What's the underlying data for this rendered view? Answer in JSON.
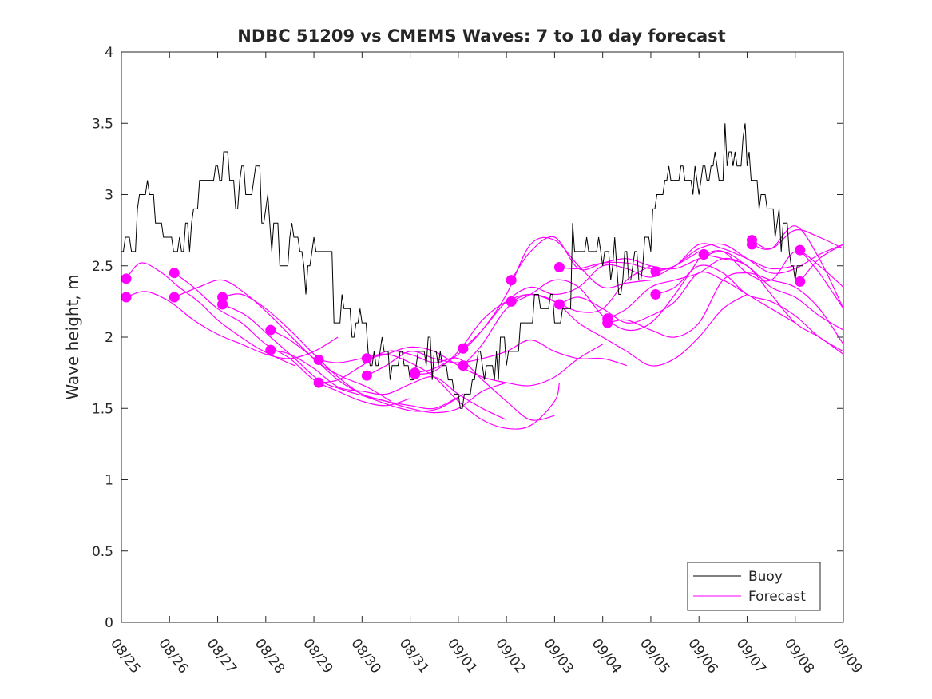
{
  "chart_data": {
    "type": "line",
    "title": "NDBC 51209 vs CMEMS Waves: 7 to 10 day forecast",
    "xlabel": "",
    "ylabel": "Wave height, m",
    "xlim": [
      0,
      15
    ],
    "ylim": [
      0,
      4
    ],
    "x_tick_labels": [
      "08/25",
      "08/26",
      "08/27",
      "08/28",
      "08/29",
      "08/30",
      "08/31",
      "09/01",
      "09/02",
      "09/03",
      "09/04",
      "09/05",
      "09/06",
      "09/07",
      "09/08",
      "09/09"
    ],
    "y_ticks": [
      0,
      0.5,
      1,
      1.5,
      2,
      2.5,
      3,
      3.5,
      4
    ],
    "y_tick_labels": [
      "0",
      "0.5",
      "1",
      "1.5",
      "2",
      "2.5",
      "3",
      "3.5",
      "4"
    ],
    "legend": {
      "position": "bottom-right",
      "entries": [
        {
          "label": "Buoy",
          "color": "#000000"
        },
        {
          "label": "Forecast",
          "color": "#ff00ff"
        }
      ]
    },
    "colors": {
      "buoy": "#000000",
      "forecast": "#ff00ff"
    },
    "buoy_series": {
      "name": "Buoy",
      "anchor_x": [
        0.0,
        0.15,
        0.3,
        0.45,
        0.6,
        0.8,
        1.0,
        1.2,
        1.4,
        1.6,
        1.8,
        2.0,
        2.2,
        2.4,
        2.5,
        2.7,
        2.9,
        3.0,
        3.2,
        3.4,
        3.6,
        3.8,
        4.0,
        4.2,
        4.4,
        4.6,
        4.8,
        5.0,
        5.2,
        5.4,
        5.6,
        5.8,
        6.0,
        6.2,
        6.4,
        6.6,
        6.8,
        7.0,
        7.2,
        7.4,
        7.6,
        7.8,
        8.0,
        8.2,
        8.4,
        8.6,
        8.8,
        9.0,
        9.2,
        9.4,
        9.6,
        9.8,
        10.0,
        10.2,
        10.4,
        10.6,
        10.8,
        11.0,
        11.2,
        11.4,
        11.6,
        11.8,
        12.0,
        12.2,
        12.4,
        12.6,
        12.8,
        13.0,
        13.2,
        13.4,
        13.6,
        13.8,
        14.0,
        14.2
      ],
      "anchor_y": [
        2.7,
        2.6,
        2.8,
        3.1,
        2.9,
        2.6,
        2.7,
        2.6,
        2.8,
        3.0,
        2.9,
        3.1,
        3.2,
        2.9,
        3.2,
        3.1,
        2.8,
        2.9,
        2.6,
        2.5,
        2.7,
        2.4,
        2.6,
        2.5,
        2.2,
        2.2,
        2.0,
        2.1,
        1.9,
        1.9,
        1.85,
        1.8,
        1.8,
        1.85,
        1.9,
        1.8,
        1.7,
        1.65,
        1.55,
        1.75,
        1.7,
        1.8,
        1.85,
        1.9,
        2.0,
        2.2,
        2.2,
        2.1,
        2.3,
        2.5,
        2.7,
        2.6,
        2.6,
        2.5,
        2.4,
        2.5,
        2.6,
        2.75,
        3.0,
        3.15,
        3.1,
        3.0,
        3.1,
        3.2,
        3.2,
        3.25,
        3.3,
        3.3,
        3.1,
        2.9,
        2.75,
        2.65,
        2.5,
        2.45
      ],
      "noise": 0.08
    },
    "forecast_series": [
      {
        "name": "Forecast",
        "x": [
          0.1,
          0.4,
          0.8,
          1.2,
          1.6,
          2.0,
          2.4,
          2.8,
          3.2,
          3.6
        ],
        "y": [
          2.41,
          2.52,
          2.46,
          2.35,
          2.25,
          2.12,
          2.02,
          1.93,
          1.86,
          1.8
        ]
      },
      {
        "name": "Forecast",
        "x": [
          0.1,
          0.5,
          1.0,
          1.5,
          2.0,
          2.5,
          3.0,
          3.5,
          4.0,
          4.5
        ],
        "y": [
          2.28,
          2.32,
          2.25,
          2.12,
          2.02,
          1.95,
          1.88,
          1.85,
          1.9,
          2.0
        ]
      },
      {
        "name": "Forecast",
        "x": [
          1.1,
          1.5,
          2.0,
          2.5,
          3.0,
          3.5,
          4.0,
          4.5,
          5.0,
          5.5,
          6.0
        ],
        "y": [
          2.45,
          2.35,
          2.2,
          2.1,
          1.95,
          1.85,
          1.7,
          1.62,
          1.55,
          1.52,
          1.57
        ]
      },
      {
        "name": "Forecast",
        "x": [
          1.1,
          1.6,
          2.1,
          2.6,
          3.1,
          3.6,
          4.1,
          4.6,
          5.1,
          5.6
        ],
        "y": [
          2.28,
          2.35,
          2.4,
          2.3,
          2.15,
          1.98,
          1.82,
          1.72,
          1.65,
          1.55
        ]
      },
      {
        "name": "Forecast",
        "x": [
          2.1,
          2.5,
          3.0,
          3.5,
          4.0,
          4.5,
          5.0,
          5.5,
          6.0,
          6.5,
          7.0
        ],
        "y": [
          2.28,
          2.3,
          2.2,
          2.05,
          1.88,
          1.72,
          1.6,
          1.55,
          1.52,
          1.5,
          1.58
        ]
      },
      {
        "name": "Forecast",
        "x": [
          2.1,
          2.6,
          3.1,
          3.6,
          4.1,
          4.6,
          5.1,
          5.6,
          6.1,
          6.6,
          7.1
        ],
        "y": [
          2.23,
          2.15,
          2.0,
          1.85,
          1.7,
          1.63,
          1.58,
          1.52,
          1.48,
          1.5,
          1.6
        ]
      },
      {
        "name": "Forecast",
        "x": [
          3.1,
          3.5,
          4.0,
          4.5,
          5.0,
          5.5,
          6.0,
          6.5,
          7.0,
          7.5,
          8.0
        ],
        "y": [
          2.05,
          1.98,
          1.85,
          1.7,
          1.6,
          1.55,
          1.5,
          1.47,
          1.5,
          1.62,
          1.68
        ]
      },
      {
        "name": "Forecast",
        "x": [
          3.1,
          3.5,
          4.0,
          4.5,
          5.0,
          5.5,
          6.0,
          6.5,
          7.0,
          7.5,
          8.0
        ],
        "y": [
          1.91,
          1.88,
          1.78,
          1.65,
          1.62,
          1.6,
          1.67,
          1.72,
          1.6,
          1.5,
          1.42
        ]
      },
      {
        "name": "Forecast",
        "x": [
          4.1,
          4.5,
          5.0,
          5.5,
          6.0,
          6.5,
          7.0,
          7.5,
          8.0,
          8.5,
          9.0,
          9.1
        ],
        "y": [
          1.84,
          1.82,
          1.85,
          1.88,
          1.82,
          1.72,
          1.55,
          1.42,
          1.36,
          1.38,
          1.55,
          1.68
        ]
      },
      {
        "name": "Forecast",
        "x": [
          4.1,
          4.5,
          5.0,
          5.5,
          6.0,
          6.5,
          7.0,
          7.5,
          8.0,
          8.5,
          9.0
        ],
        "y": [
          1.68,
          1.7,
          1.8,
          1.9,
          1.88,
          1.82,
          1.85,
          1.7,
          1.55,
          1.42,
          1.45
        ]
      },
      {
        "name": "Forecast",
        "x": [
          5.1,
          5.5,
          6.0,
          6.5,
          7.0,
          7.5,
          8.0,
          8.5,
          9.0,
          9.5,
          10.0
        ],
        "y": [
          1.85,
          1.88,
          1.93,
          1.9,
          1.8,
          1.72,
          1.68,
          1.66,
          1.72,
          1.85,
          1.95
        ]
      },
      {
        "name": "Forecast",
        "x": [
          5.1,
          5.5,
          6.0,
          6.5,
          7.0,
          7.5,
          8.0,
          8.5,
          9.0,
          9.5,
          10.0,
          10.5
        ],
        "y": [
          1.73,
          1.8,
          1.9,
          1.85,
          1.82,
          1.85,
          1.9,
          1.98,
          1.9,
          1.85,
          1.85,
          1.8
        ]
      },
      {
        "name": "Forecast",
        "x": [
          6.1,
          6.5,
          7.0,
          7.5,
          8.0,
          8.5,
          9.0,
          9.5,
          10.0,
          10.5,
          11.0
        ],
        "y": [
          1.75,
          1.78,
          1.88,
          2.05,
          2.3,
          2.65,
          2.68,
          2.5,
          2.35,
          2.38,
          2.4
        ]
      },
      {
        "name": "Forecast",
        "x": [
          6.1,
          6.5,
          7.0,
          7.5,
          8.0,
          8.5,
          9.0,
          9.5,
          10.0,
          10.5,
          11.0
        ],
        "y": [
          1.74,
          1.76,
          1.9,
          2.12,
          2.25,
          2.3,
          2.25,
          2.18,
          2.2,
          2.4,
          2.5
        ]
      },
      {
        "name": "Forecast",
        "x": [
          7.1,
          7.5,
          8.0,
          8.5,
          9.0,
          9.5,
          10.0,
          10.5,
          11.0,
          11.5,
          12.0
        ],
        "y": [
          1.92,
          2.05,
          2.25,
          2.35,
          2.3,
          2.35,
          2.5,
          2.48,
          2.42,
          2.5,
          2.6
        ]
      },
      {
        "name": "Forecast",
        "x": [
          7.1,
          7.5,
          8.0,
          8.5,
          9.0,
          9.5,
          10.0,
          10.5,
          11.0,
          11.5,
          12.0
        ],
        "y": [
          1.8,
          1.95,
          2.2,
          2.3,
          2.4,
          2.35,
          2.15,
          2.05,
          2.1,
          2.3,
          2.55
        ]
      },
      {
        "name": "Forecast",
        "x": [
          8.1,
          8.5,
          9.0,
          9.5,
          10.0,
          10.5,
          11.0,
          11.5,
          12.0,
          12.5,
          13.0
        ],
        "y": [
          2.4,
          2.6,
          2.7,
          2.48,
          2.52,
          2.55,
          2.5,
          2.48,
          2.55,
          2.6,
          2.5
        ]
      },
      {
        "name": "Forecast",
        "x": [
          8.1,
          8.5,
          9.0,
          9.5,
          10.0,
          10.5,
          11.0,
          11.5,
          12.0,
          12.5,
          13.0
        ],
        "y": [
          2.25,
          2.3,
          2.25,
          2.1,
          2.0,
          1.9,
          1.8,
          1.85,
          2.0,
          2.2,
          2.3
        ]
      },
      {
        "name": "Forecast",
        "x": [
          9.1,
          9.5,
          10.0,
          10.5,
          11.0,
          11.5,
          12.0,
          12.5,
          13.0,
          13.5,
          14.0
        ],
        "y": [
          2.49,
          2.48,
          2.52,
          2.52,
          2.48,
          2.5,
          2.65,
          2.62,
          2.55,
          2.48,
          2.5
        ]
      },
      {
        "name": "Forecast",
        "x": [
          9.1,
          9.5,
          10.0,
          10.5,
          11.0,
          11.5,
          12.0,
          12.5,
          13.0,
          13.5,
          14.0
        ],
        "y": [
          2.23,
          2.28,
          2.2,
          2.1,
          2.15,
          2.25,
          2.45,
          2.4,
          2.3,
          2.2,
          2.1
        ]
      },
      {
        "name": "Forecast",
        "x": [
          10.1,
          10.5,
          11.0,
          11.5,
          12.0,
          12.5,
          13.0,
          13.5,
          14.0,
          14.5,
          15.0
        ],
        "y": [
          2.13,
          2.2,
          2.35,
          2.4,
          2.45,
          2.55,
          2.5,
          2.35,
          2.28,
          2.15,
          2.05
        ]
      },
      {
        "name": "Forecast",
        "x": [
          10.1,
          10.5,
          11.0,
          11.5,
          12.0,
          12.5,
          13.0,
          13.5,
          14.0,
          14.5,
          15.0
        ],
        "y": [
          2.1,
          2.12,
          2.05,
          2.0,
          2.1,
          2.4,
          2.45,
          2.4,
          2.35,
          2.2,
          1.95
        ]
      },
      {
        "name": "Forecast",
        "x": [
          11.1,
          11.5,
          12.0,
          12.5,
          13.0,
          13.5,
          14.0,
          14.5,
          15.0
        ],
        "y": [
          2.46,
          2.5,
          2.62,
          2.65,
          2.55,
          2.45,
          2.48,
          2.58,
          2.65
        ]
      },
      {
        "name": "Forecast",
        "x": [
          11.1,
          11.5,
          12.0,
          12.5,
          13.0,
          13.5,
          14.0,
          14.5,
          15.0
        ],
        "y": [
          2.3,
          2.35,
          2.5,
          2.45,
          2.3,
          2.25,
          2.15,
          2.0,
          1.9
        ]
      },
      {
        "name": "Forecast",
        "x": [
          12.1,
          12.5,
          13.0,
          13.5,
          14.0,
          14.5,
          15.0
        ],
        "y": [
          2.58,
          2.55,
          2.5,
          2.3,
          2.1,
          2.0,
          1.88
        ]
      },
      {
        "name": "Forecast",
        "x": [
          12.1,
          12.5,
          13.0,
          13.5,
          14.0,
          14.5,
          15.0
        ],
        "y": [
          2.58,
          2.6,
          2.45,
          2.4,
          2.6,
          2.5,
          2.35
        ]
      },
      {
        "name": "Forecast",
        "x": [
          13.1,
          13.5,
          14.0,
          14.5,
          15.0
        ],
        "y": [
          2.68,
          2.62,
          2.75,
          2.7,
          2.62
        ]
      },
      {
        "name": "Forecast",
        "x": [
          13.1,
          13.5,
          14.0,
          14.5,
          15.0
        ],
        "y": [
          2.65,
          2.62,
          2.78,
          2.55,
          2.2
        ]
      },
      {
        "name": "Forecast",
        "x": [
          14.1,
          14.5,
          15.0
        ],
        "y": [
          2.61,
          2.45,
          2.2
        ]
      },
      {
        "name": "Forecast",
        "x": [
          14.1,
          14.5,
          15.0
        ],
        "y": [
          2.39,
          2.55,
          2.65
        ]
      }
    ],
    "forecast_markers": {
      "x": [
        0.1,
        0.1,
        1.1,
        1.1,
        2.1,
        2.1,
        3.1,
        3.1,
        4.1,
        4.1,
        5.1,
        5.1,
        6.1,
        6.1,
        7.1,
        7.1,
        8.1,
        8.1,
        9.1,
        9.1,
        10.1,
        10.1,
        11.1,
        11.1,
        12.1,
        12.1,
        13.1,
        13.1,
        14.1,
        14.1
      ],
      "y": [
        2.41,
        2.28,
        2.45,
        2.28,
        2.28,
        2.23,
        2.05,
        1.91,
        1.84,
        1.68,
        1.85,
        1.73,
        1.75,
        1.74,
        1.92,
        1.8,
        2.4,
        2.25,
        2.49,
        2.23,
        2.13,
        2.1,
        2.46,
        2.3,
        2.58,
        2.58,
        2.68,
        2.65,
        2.61,
        2.39
      ]
    }
  }
}
